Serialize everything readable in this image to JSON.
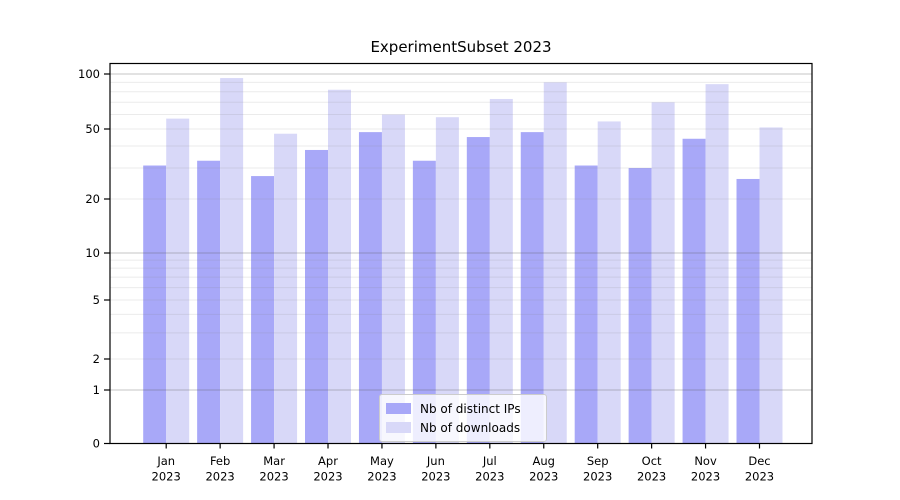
{
  "title": "ExperimentSubset 2023",
  "chart_data": {
    "type": "bar",
    "title": "ExperimentSubset 2023",
    "categories": [
      "Jan\n2023",
      "Feb\n2023",
      "Mar\n2023",
      "Apr\n2023",
      "May\n2023",
      "Jun\n2023",
      "Jul\n2023",
      "Aug\n2023",
      "Sep\n2023",
      "Oct\n2023",
      "Nov\n2023",
      "Dec\n2023"
    ],
    "series": [
      {
        "name": "Nb of distinct IPs",
        "color": "#a8a8f8",
        "values": [
          31,
          33,
          27,
          38,
          48,
          33,
          45,
          48,
          31,
          30,
          44,
          26
        ]
      },
      {
        "name": "Nb of downloads",
        "color": "#d8d8f8",
        "values": [
          57,
          95,
          47,
          82,
          60,
          58,
          73,
          90,
          55,
          70,
          88,
          51
        ]
      }
    ],
    "yscale": "symlog",
    "yticks": [
      0,
      1,
      2,
      5,
      10,
      20,
      50,
      100
    ],
    "minor_grid_values": [
      3,
      4,
      6,
      7,
      8,
      9,
      30,
      40,
      60,
      70,
      80,
      90
    ],
    "ylim": [
      0,
      114
    ],
    "xlabel": "",
    "ylabel": "",
    "grid": true,
    "legend_position": "lower center"
  }
}
